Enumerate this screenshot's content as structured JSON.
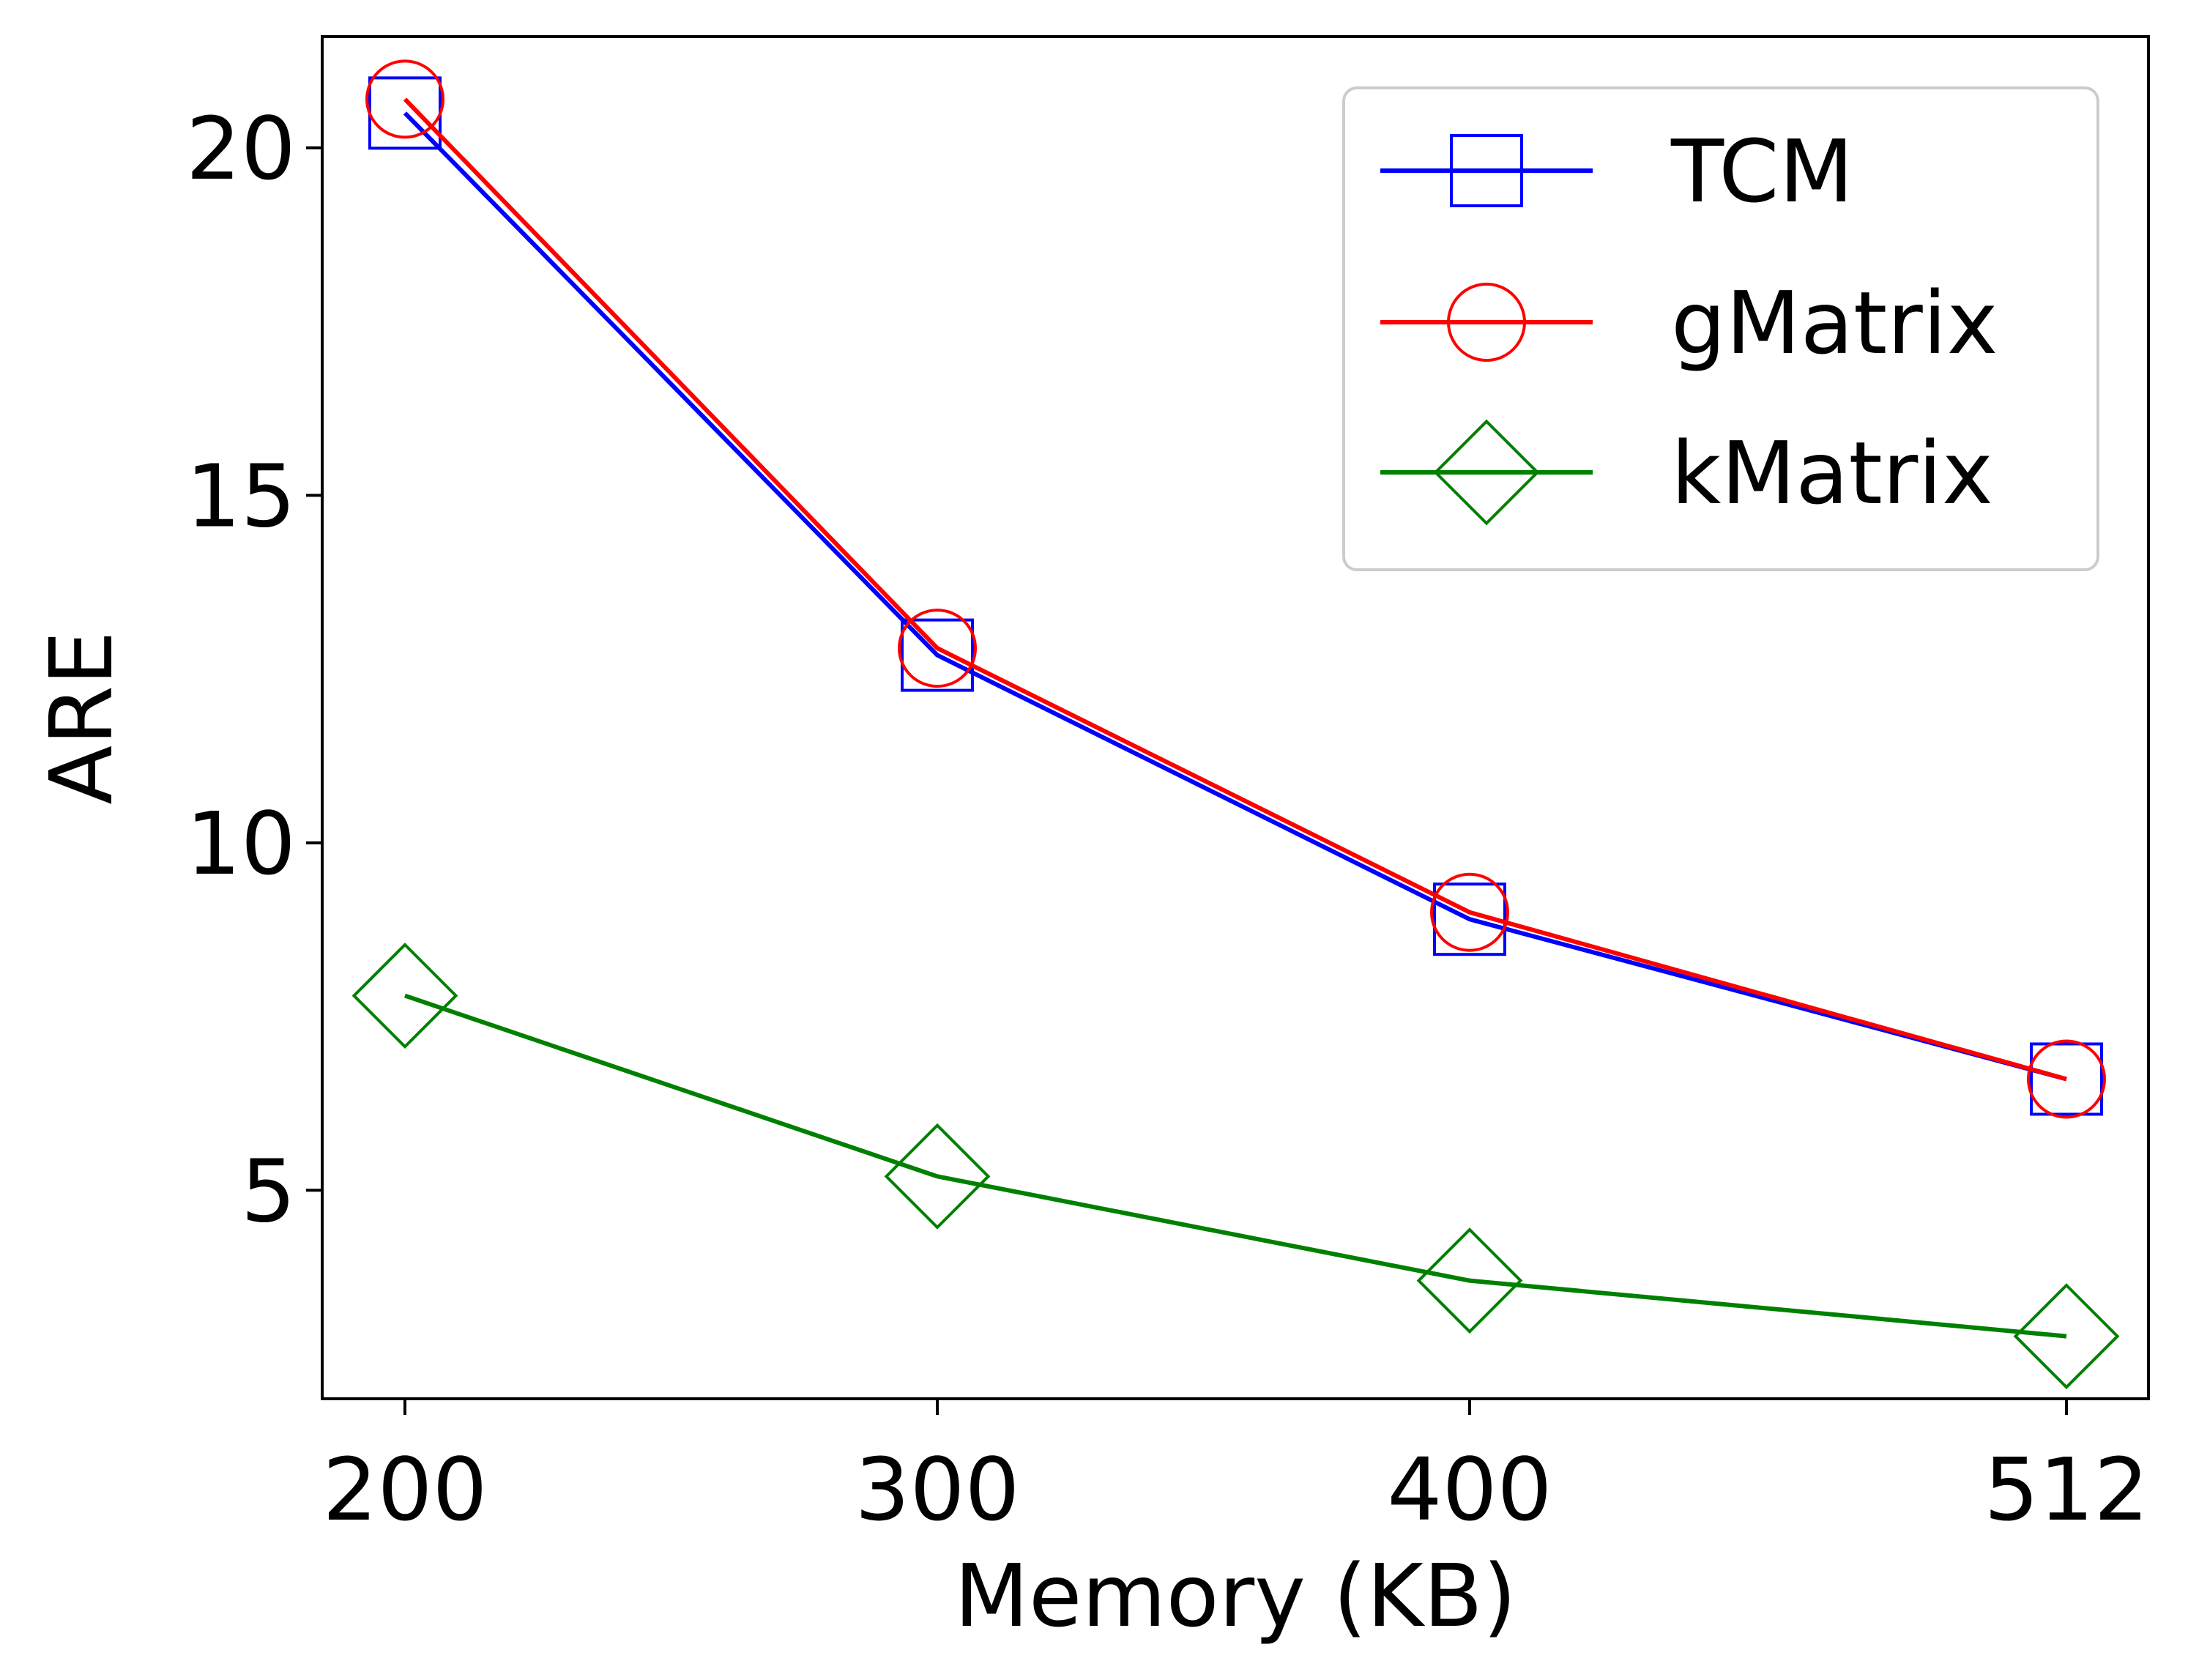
{
  "chart_data": {
    "type": "line",
    "title": "",
    "xlabel": "Memory (KB)",
    "ylabel": "ARE",
    "categories": [
      "200",
      "300",
      "400",
      "512"
    ],
    "ylim": [
      2,
      21.6
    ],
    "yticks": [
      5,
      10,
      15,
      20
    ],
    "grid": false,
    "legend_position": "top-right",
    "series": [
      {
        "name": "TCM",
        "color": "#0000ff",
        "marker": "square",
        "values": [
          20.5,
          12.7,
          8.9,
          6.6
        ]
      },
      {
        "name": "gMatrix",
        "color": "#ff0000",
        "marker": "circle",
        "values": [
          20.7,
          12.8,
          9.0,
          6.6
        ]
      },
      {
        "name": "kMatrix",
        "color": "#008000",
        "marker": "diamond",
        "values": [
          7.8,
          5.2,
          3.7,
          2.9
        ]
      }
    ]
  }
}
